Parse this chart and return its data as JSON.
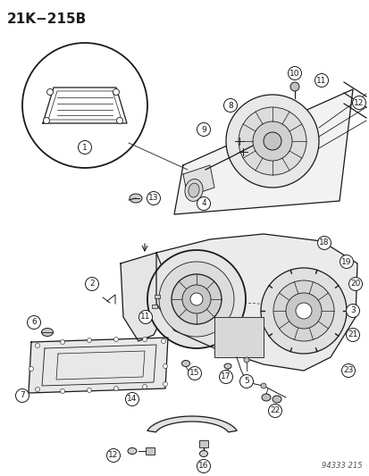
{
  "title": "21K−215B",
  "bg_color": "#ffffff",
  "title_fontsize": 11,
  "title_fontweight": "bold",
  "watermark": "94333 215",
  "fig_width": 4.14,
  "fig_height": 5.33,
  "dpi": 100
}
